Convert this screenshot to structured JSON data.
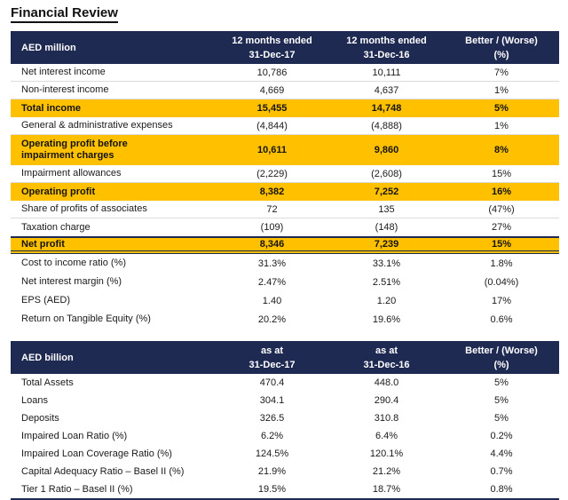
{
  "title": "Financial Review",
  "colors": {
    "navy_header": "#1f2a52",
    "gold_highlight": "#ffc000",
    "row_divider": "#dcdcdc"
  },
  "income_table": {
    "header": {
      "col0": "AED million",
      "col1_line1": "12 months ended",
      "col1_line2": "31-Dec-17",
      "col2_line1": "12 months ended",
      "col2_line2": "31-Dec-16",
      "col3_line1": "Better / (Worse)",
      "col3_line2": "(%)"
    },
    "rows": [
      {
        "label": "Net interest income",
        "v17": "10,786",
        "v16": "10,111",
        "delta": "7%",
        "style": "line"
      },
      {
        "label": "Non-interest income",
        "v17": "4,669",
        "v16": "4,637",
        "delta": "1%",
        "style": "line"
      },
      {
        "label": "Total income",
        "v17": "15,455",
        "v16": "14,748",
        "delta": "5%",
        "style": "highlight"
      },
      {
        "label": "General & administrative expenses",
        "v17": "(4,844)",
        "v16": "(4,888)",
        "delta": "1%",
        "style": "line"
      },
      {
        "label": "Operating profit before impairment charges",
        "v17": "10,611",
        "v16": "9,860",
        "delta": "8%",
        "style": "highlight tall"
      },
      {
        "label": "Impairment allowances",
        "v17": "(2,229)",
        "v16": "(2,608)",
        "delta": "15%",
        "style": "line"
      },
      {
        "label": "Operating profit",
        "v17": "8,382",
        "v16": "7,252",
        "delta": "16%",
        "style": "highlight"
      },
      {
        "label": "Share of profits of associates",
        "v17": "72",
        "v16": "135",
        "delta": "(47%)",
        "style": "line"
      },
      {
        "label": "Taxation charge",
        "v17": "(109)",
        "v16": "(148)",
        "delta": "27%",
        "style": ""
      },
      {
        "label": "Net profit",
        "v17": "8,346",
        "v16": "7,239",
        "delta": "15%",
        "style": "highlight netprofit"
      },
      {
        "label": "Cost to income ratio (%)",
        "v17": "31.3%",
        "v16": "33.1%",
        "delta": "1.8%",
        "style": "ratio"
      },
      {
        "label": "Net interest margin (%)",
        "v17": "2.47%",
        "v16": "2.51%",
        "delta": "(0.04%)",
        "style": "ratio"
      },
      {
        "label": "EPS (AED)",
        "v17": "1.40",
        "v16": "1.20",
        "delta": "17%",
        "style": "ratio"
      },
      {
        "label": "Return on Tangible Equity (%)",
        "v17": "20.2%",
        "v16": "19.6%",
        "delta": "0.6%",
        "style": "ratio"
      }
    ]
  },
  "balance_table": {
    "header": {
      "col0": "AED billion",
      "col1_line1": "as at",
      "col1_line2": "31-Dec-17",
      "col2_line1": "as at",
      "col2_line2": "31-Dec-16",
      "col3_line1": "Better / (Worse)",
      "col3_line2": "(%)"
    },
    "rows": [
      {
        "label": "Total Assets",
        "v17": "470.4",
        "v16": "448.0",
        "delta": "5%",
        "style": ""
      },
      {
        "label": "Loans",
        "v17": "304.1",
        "v16": "290.4",
        "delta": "5%",
        "style": ""
      },
      {
        "label": "Deposits",
        "v17": "326.5",
        "v16": "310.8",
        "delta": "5%",
        "style": ""
      },
      {
        "label": "Impaired Loan Ratio (%)",
        "v17": "6.2%",
        "v16": "6.4%",
        "delta": "0.2%",
        "style": ""
      },
      {
        "label": "Impaired Loan Coverage Ratio (%)",
        "v17": "124.5%",
        "v16": "120.1%",
        "delta": "4.4%",
        "style": ""
      },
      {
        "label": "Capital Adequacy Ratio – Basel II (%)",
        "v17": "21.9%",
        "v16": "21.2%",
        "delta": "0.7%",
        "style": ""
      },
      {
        "label": "Tier 1 Ratio – Basel II (%)",
        "v17": "19.5%",
        "v16": "18.7%",
        "delta": "0.8%",
        "style": ""
      }
    ]
  }
}
